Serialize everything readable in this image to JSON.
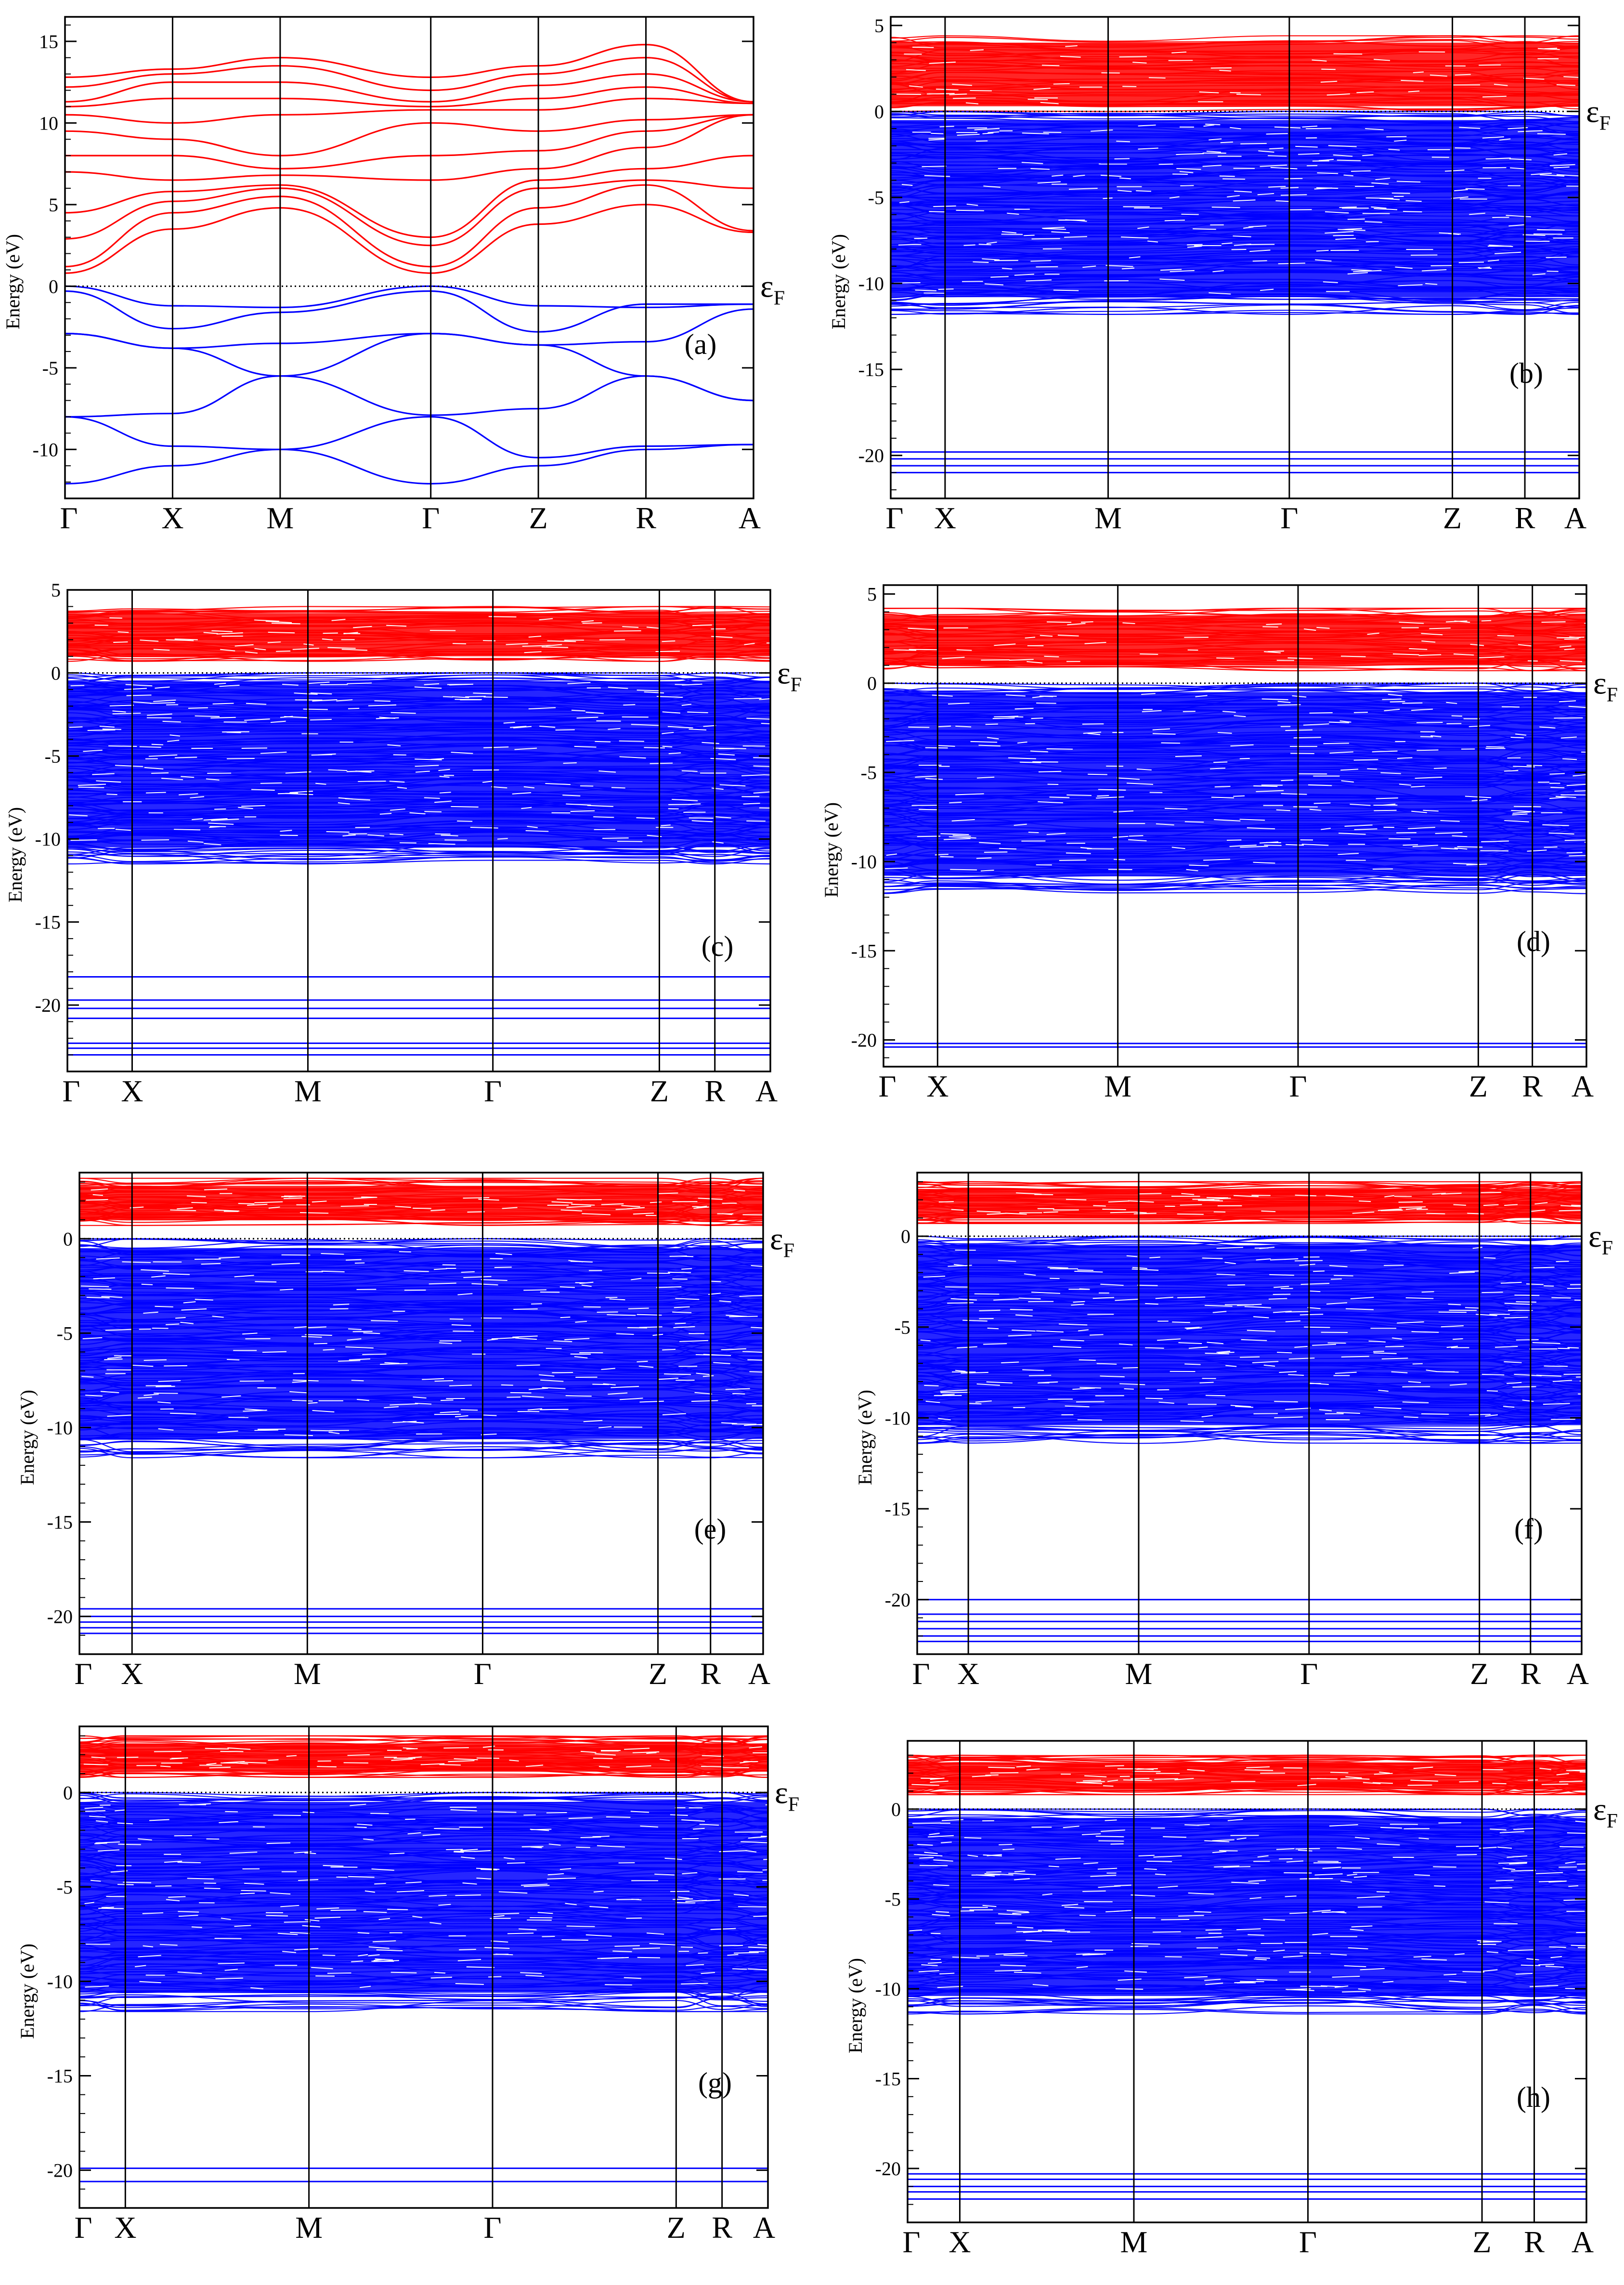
{
  "figure": {
    "labels": [
      "(a)",
      "(b)",
      "(c)",
      "(d)",
      "(e)",
      "(f)",
      "(g)",
      "(h)"
    ]
  },
  "colors": {
    "conduction": "#ff0000",
    "valence": "#0000ff",
    "axis": "#000000",
    "fermi": "#000000"
  },
  "chart_data": [
    {
      "type": "line",
      "title": "",
      "panel_label": "(a)",
      "xlabel": "",
      "ylabel": "Energy (eV)",
      "ylim": [
        -13,
        16.5
      ],
      "yticks": [
        15,
        10,
        5,
        0,
        -5,
        -10
      ],
      "x_labels": [
        "Γ",
        "X",
        "M",
        "Γ",
        "Z",
        "R",
        "A"
      ],
      "x_positions": [
        0,
        1,
        2,
        3.4,
        4.4,
        5.4,
        6.4
      ],
      "fermi_level": 0,
      "fermi_label": "εF",
      "valence_bands": {
        "color": "#0000ff",
        "series": [
          {
            "values": [
              0,
              -1.2,
              -1.3,
              0,
              -1.2,
              -1.3,
              -1.1
            ]
          },
          {
            "values": [
              -0.3,
              -2.6,
              -1.6,
              -0.3,
              -2.8,
              -1.1,
              -1.1
            ]
          },
          {
            "values": [
              -2.9,
              -3.8,
              -3.5,
              -2.9,
              -3.6,
              -3.4,
              -1.4
            ]
          },
          {
            "values": [
              -2.9,
              -3.8,
              -5.5,
              -2.9,
              -3.6,
              -5.5,
              -7.0
            ]
          },
          {
            "values": [
              -8.0,
              -7.8,
              -5.5,
              -7.9,
              -7.5,
              -5.5,
              -7.0
            ]
          },
          {
            "values": [
              -8.0,
              -9.8,
              -10.0,
              -8.0,
              -10.5,
              -9.8,
              -9.7
            ]
          },
          {
            "values": [
              -12.1,
              -11.0,
              -10.0,
              -12.1,
              -11.0,
              -10.0,
              -9.7
            ]
          }
        ]
      },
      "conduction_bands": {
        "color": "#ff0000",
        "series": [
          {
            "values": [
              0.8,
              3.5,
              4.8,
              0.8,
              3.8,
              5.0,
              3.3
            ]
          },
          {
            "values": [
              1.2,
              4.5,
              5.5,
              1.2,
              4.8,
              6.2,
              3.4
            ]
          },
          {
            "values": [
              2.9,
              5.2,
              6.0,
              2.5,
              6.0,
              6.5,
              6.0
            ]
          },
          {
            "values": [
              4.5,
              5.8,
              6.2,
              3.0,
              6.5,
              7.2,
              8.0
            ]
          },
          {
            "values": [
              7.0,
              6.5,
              6.8,
              6.5,
              7.2,
              8.5,
              10.5
            ]
          },
          {
            "values": [
              8.0,
              8.0,
              7.2,
              8.0,
              8.3,
              9.5,
              10.5
            ]
          },
          {
            "values": [
              9.5,
              9.0,
              8.0,
              10.0,
              9.5,
              10.2,
              10.5
            ]
          },
          {
            "values": [
              10.5,
              10.0,
              10.5,
              10.8,
              10.8,
              11.5,
              11.2
            ]
          },
          {
            "values": [
              11.0,
              11.5,
              11.5,
              11.0,
              11.5,
              12.2,
              11.2
            ]
          },
          {
            "values": [
              11.3,
              12.5,
              12.5,
              11.3,
              12.3,
              13.0,
              11.3
            ]
          },
          {
            "values": [
              12.2,
              13.0,
              13.5,
              12.0,
              13.0,
              14.0,
              11.3
            ]
          },
          {
            "values": [
              12.8,
              13.3,
              14.0,
              12.8,
              13.5,
              14.8,
              11.3
            ]
          }
        ]
      }
    },
    {
      "type": "line",
      "title": "",
      "panel_label": "(b)",
      "xlabel": "",
      "ylabel": "Energy (eV)",
      "ylim": [
        -22.5,
        5.5
      ],
      "yticks": [
        5,
        0,
        -5,
        -10,
        -15,
        -20
      ],
      "x_labels": [
        "Γ",
        "X",
        "M",
        "Γ",
        "Z",
        "R",
        "A"
      ],
      "x_positions": [
        0,
        0.3,
        1.2,
        2.2,
        3.1,
        3.5,
        3.8
      ],
      "fermi_level": 0,
      "fermi_label": "εF",
      "conduction_range": [
        0,
        4.4
      ],
      "valence_range": [
        -11.8,
        0
      ],
      "deep_levels": [
        -19.8,
        -20.2,
        -20.6,
        -21.0
      ]
    },
    {
      "type": "line",
      "title": "",
      "panel_label": "(c)",
      "xlabel": "",
      "ylabel": "Energy (eV)",
      "ylim": [
        -24,
        5
      ],
      "yticks": [
        5,
        0,
        -5,
        -10,
        -15,
        -20
      ],
      "x_labels": [
        "Γ",
        "X",
        "M",
        "Γ",
        "Z",
        "R",
        "A"
      ],
      "x_positions": [
        0,
        0.35,
        1.3,
        2.3,
        3.2,
        3.5,
        3.8
      ],
      "fermi_level": 0,
      "fermi_label": "εF",
      "conduction_range": [
        0.7,
        4.0
      ],
      "valence_range": [
        -11.5,
        0
      ],
      "deep_levels": [
        -18.3,
        -19.7,
        -20.2,
        -20.8,
        -22.3,
        -22.6,
        -23.0
      ]
    },
    {
      "type": "line",
      "title": "",
      "panel_label": "(d)",
      "xlabel": "",
      "ylabel": "Energy (eV)",
      "ylim": [
        -21.5,
        5.5
      ],
      "yticks": [
        5,
        0,
        -5,
        -10,
        -15,
        -20
      ],
      "x_labels": [
        "Γ",
        "X",
        "M",
        "Γ",
        "Z",
        "R",
        "A"
      ],
      "x_positions": [
        0,
        0.3,
        1.3,
        2.3,
        3.3,
        3.6,
        3.9
      ],
      "fermi_level": 0,
      "fermi_label": "εF",
      "conduction_range": [
        0.7,
        4.2
      ],
      "valence_range": [
        -11.8,
        0
      ],
      "deep_levels": [
        -20.2,
        -20.4
      ]
    },
    {
      "type": "line",
      "title": "",
      "panel_label": "(e)",
      "xlabel": "",
      "ylabel": "Energy (eV)",
      "ylim": [
        -22,
        3.5
      ],
      "yticks": [
        0,
        -5,
        -10,
        -15,
        -20
      ],
      "x_labels": [
        "Γ",
        "X",
        "M",
        "Γ",
        "Z",
        "R",
        "A"
      ],
      "x_positions": [
        0,
        0.3,
        1.3,
        2.3,
        3.3,
        3.6,
        3.9
      ],
      "fermi_level": 0,
      "fermi_label": "εF",
      "conduction_range": [
        0.7,
        3.2
      ],
      "valence_range": [
        -11.6,
        0
      ],
      "deep_levels": [
        -19.6,
        -20.0,
        -20.3,
        -20.6,
        -20.9
      ]
    },
    {
      "type": "line",
      "title": "",
      "panel_label": "(f)",
      "xlabel": "",
      "ylabel": "Energy (eV)",
      "ylim": [
        -23,
        3.5
      ],
      "yticks": [
        0,
        -5,
        -10,
        -15,
        -20
      ],
      "x_labels": [
        "Γ",
        "X",
        "M",
        "Γ",
        "Z",
        "R",
        "A"
      ],
      "x_positions": [
        0,
        0.3,
        1.3,
        2.3,
        3.3,
        3.6,
        3.9
      ],
      "fermi_level": 0,
      "fermi_label": "εF",
      "conduction_range": [
        0.7,
        3.0
      ],
      "valence_range": [
        -11.4,
        0
      ],
      "deep_levels": [
        -20.0,
        -20.8,
        -21.2,
        -21.6,
        -22.0,
        -22.3
      ]
    },
    {
      "type": "line",
      "title": "",
      "panel_label": "(g)",
      "xlabel": "",
      "ylabel": "Energy (eV)",
      "ylim": [
        -22,
        3.5
      ],
      "yticks": [
        0,
        -5,
        -10,
        -15,
        -20
      ],
      "x_labels": [
        "Γ",
        "X",
        "M",
        "Γ",
        "Z",
        "R",
        "A"
      ],
      "x_positions": [
        0,
        0.25,
        1.25,
        2.25,
        3.25,
        3.5,
        3.75
      ],
      "fermi_level": 0,
      "fermi_label": "εF",
      "conduction_range": [
        0.8,
        3.0
      ],
      "valence_range": [
        -11.6,
        0
      ],
      "deep_levels": [
        -19.9,
        -20.6
      ]
    },
    {
      "type": "line",
      "title": "",
      "panel_label": "(h)",
      "xlabel": "",
      "ylabel": "Energy (eV)",
      "ylim": [
        -23,
        3.8
      ],
      "yticks": [
        0,
        -5,
        -10,
        -15,
        -20
      ],
      "x_labels": [
        "Γ",
        "X",
        "M",
        "Γ",
        "Z",
        "R",
        "A"
      ],
      "x_positions": [
        0,
        0.3,
        1.3,
        2.3,
        3.3,
        3.6,
        3.9
      ],
      "fermi_level": 0,
      "fermi_label": "εF",
      "conduction_range": [
        0.8,
        3.0
      ],
      "valence_range": [
        -11.4,
        0
      ],
      "deep_levels": [
        -20.3,
        -20.6,
        -21.0,
        -21.3,
        -21.7
      ]
    }
  ]
}
